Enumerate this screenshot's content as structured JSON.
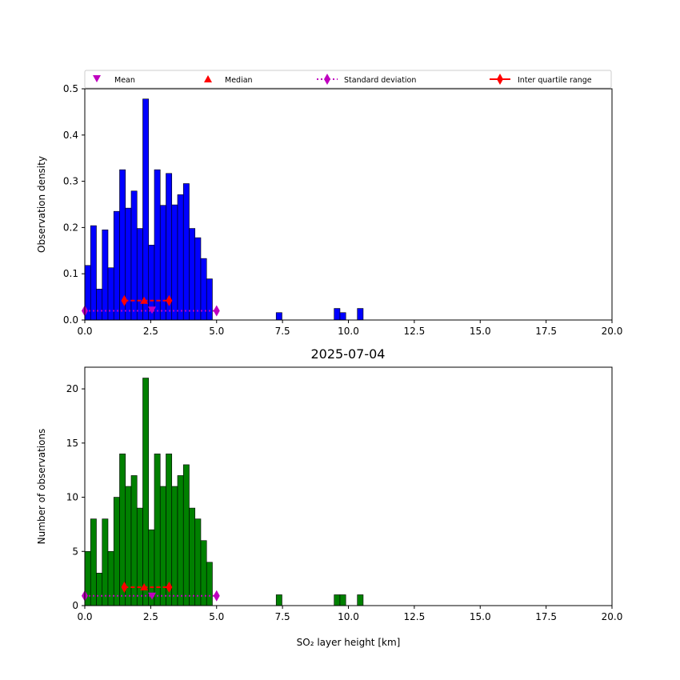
{
  "figure": {
    "date_title": "2025-07-04"
  },
  "legend": {
    "items": [
      {
        "label": "Mean",
        "marker": "triangle-down",
        "color": "#bf00bf"
      },
      {
        "label": "Median",
        "marker": "triangle-up",
        "color": "#ff0000"
      },
      {
        "label": "Standard deviation",
        "marker": "diamond-dotted",
        "color": "#bf00bf"
      },
      {
        "label": "Inter quartile range",
        "marker": "diamond-solid",
        "color": "#ff0000"
      }
    ]
  },
  "chart_data": [
    {
      "type": "bar",
      "bar_color": "#0000ff",
      "ylabel": "Observation density",
      "xlabel": "",
      "xlim": [
        0,
        20
      ],
      "ylim": [
        0,
        0.5
      ],
      "x_ticks": [
        "0.0",
        "2.5",
        "5.0",
        "7.5",
        "10.0",
        "12.5",
        "15.0",
        "17.5",
        "20.0"
      ],
      "y_ticks": [
        "0.0",
        "0.1",
        "0.2",
        "0.3",
        "0.4",
        "0.5"
      ],
      "y_tick_values": [
        0,
        0.1,
        0.2,
        0.3,
        0.4,
        0.5
      ],
      "bin_width": 0.22,
      "bins": [
        {
          "x": 0.0,
          "value": 0.118
        },
        {
          "x": 0.22,
          "value": 0.204
        },
        {
          "x": 0.44,
          "value": 0.067
        },
        {
          "x": 0.66,
          "value": 0.195
        },
        {
          "x": 0.88,
          "value": 0.113
        },
        {
          "x": 1.1,
          "value": 0.235
        },
        {
          "x": 1.32,
          "value": 0.325
        },
        {
          "x": 1.54,
          "value": 0.242
        },
        {
          "x": 1.76,
          "value": 0.279
        },
        {
          "x": 1.98,
          "value": 0.198
        },
        {
          "x": 2.2,
          "value": 0.478
        },
        {
          "x": 2.42,
          "value": 0.162
        },
        {
          "x": 2.64,
          "value": 0.325
        },
        {
          "x": 2.86,
          "value": 0.248
        },
        {
          "x": 3.08,
          "value": 0.317
        },
        {
          "x": 3.3,
          "value": 0.249
        },
        {
          "x": 3.52,
          "value": 0.271
        },
        {
          "x": 3.74,
          "value": 0.295
        },
        {
          "x": 3.96,
          "value": 0.198
        },
        {
          "x": 4.18,
          "value": 0.178
        },
        {
          "x": 4.4,
          "value": 0.133
        },
        {
          "x": 4.62,
          "value": 0.089
        },
        {
          "x": 7.26,
          "value": 0.016
        },
        {
          "x": 9.46,
          "value": 0.025
        },
        {
          "x": 9.68,
          "value": 0.016
        },
        {
          "x": 10.34,
          "value": 0.025
        }
      ],
      "stats": {
        "mean": {
          "x": 2.55,
          "y": 0.022
        },
        "median": {
          "x": 2.25,
          "y": 0.042
        },
        "std_range": {
          "from": 0.0,
          "to": 5.0,
          "y": 0.02
        },
        "iqr": {
          "from": 1.5,
          "to": 3.2,
          "y": 0.042
        }
      }
    },
    {
      "type": "bar",
      "bar_color": "#008000",
      "ylabel": "Number of observations",
      "xlabel": "SO₂ layer height [km]",
      "xlim": [
        0,
        20
      ],
      "ylim": [
        0,
        22
      ],
      "x_ticks": [
        "0.0",
        "2.5",
        "5.0",
        "7.5",
        "10.0",
        "12.5",
        "15.0",
        "17.5",
        "20.0"
      ],
      "y_ticks": [
        "0",
        "5",
        "10",
        "15",
        "20"
      ],
      "y_tick_values": [
        0,
        5,
        10,
        15,
        20
      ],
      "bin_width": 0.22,
      "bins": [
        {
          "x": 0.0,
          "value": 5
        },
        {
          "x": 0.22,
          "value": 8
        },
        {
          "x": 0.44,
          "value": 3
        },
        {
          "x": 0.66,
          "value": 8
        },
        {
          "x": 0.88,
          "value": 5
        },
        {
          "x": 1.1,
          "value": 10
        },
        {
          "x": 1.32,
          "value": 14
        },
        {
          "x": 1.54,
          "value": 11
        },
        {
          "x": 1.76,
          "value": 12
        },
        {
          "x": 1.98,
          "value": 9
        },
        {
          "x": 2.2,
          "value": 21
        },
        {
          "x": 2.42,
          "value": 7
        },
        {
          "x": 2.64,
          "value": 14
        },
        {
          "x": 2.86,
          "value": 11
        },
        {
          "x": 3.08,
          "value": 14
        },
        {
          "x": 3.3,
          "value": 11
        },
        {
          "x": 3.52,
          "value": 12
        },
        {
          "x": 3.74,
          "value": 13
        },
        {
          "x": 3.96,
          "value": 9
        },
        {
          "x": 4.18,
          "value": 8
        },
        {
          "x": 4.4,
          "value": 6
        },
        {
          "x": 4.62,
          "value": 4
        },
        {
          "x": 7.26,
          "value": 1
        },
        {
          "x": 9.46,
          "value": 1
        },
        {
          "x": 9.68,
          "value": 1
        },
        {
          "x": 10.34,
          "value": 1
        }
      ],
      "stats": {
        "mean": {
          "x": 2.55,
          "y": 0.9
        },
        "median": {
          "x": 2.25,
          "y": 1.7
        },
        "std_range": {
          "from": 0.0,
          "to": 5.0,
          "y": 0.9
        },
        "iqr": {
          "from": 1.5,
          "to": 3.2,
          "y": 1.7
        }
      }
    }
  ]
}
